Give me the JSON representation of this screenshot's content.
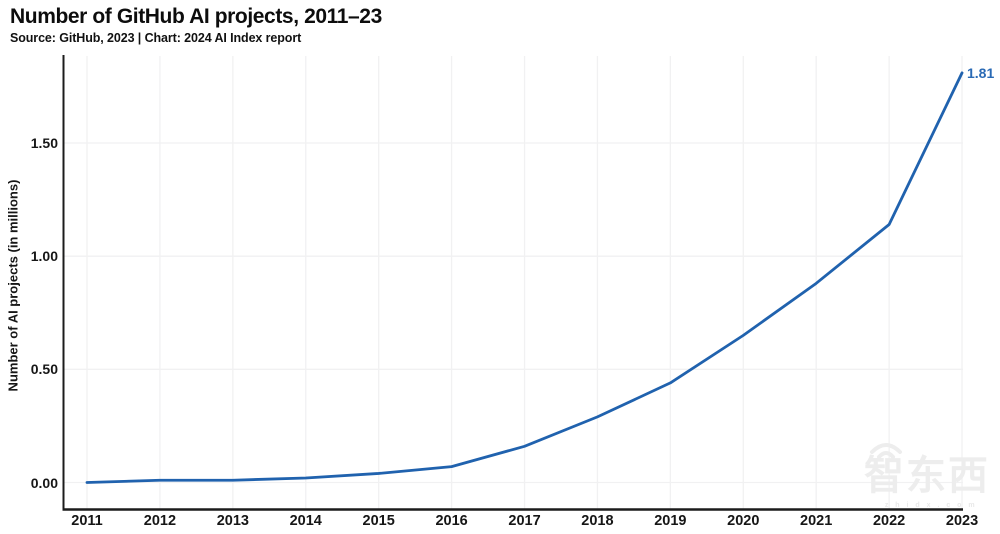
{
  "header": {
    "title": "Number of GitHub AI projects, 2011–23",
    "subtitle": "Source: GitHub, 2023 | Chart: 2024 AI Index report"
  },
  "colors": {
    "line": "#2062ae",
    "end_label": "#2a6ab5",
    "axis": "#1c1c1c",
    "grid": "#f1f1f2",
    "text": "#161616",
    "watermark": "#ededed"
  },
  "chart_data": {
    "type": "line",
    "title": "Number of GitHub AI projects, 2011–23",
    "xlabel": "",
    "ylabel": "Number of AI projects (in millions)",
    "categories": [
      "2011",
      "2012",
      "2013",
      "2014",
      "2015",
      "2016",
      "2017",
      "2018",
      "2019",
      "2020",
      "2021",
      "2022",
      "2023"
    ],
    "series": [
      {
        "name": "Number of AI projects (in millions)",
        "values": [
          0.0,
          0.01,
          0.01,
          0.02,
          0.04,
          0.07,
          0.16,
          0.29,
          0.44,
          0.65,
          0.88,
          1.14,
          1.81
        ]
      }
    ],
    "y_ticks": {
      "labels": [
        "0.00",
        "0.50",
        "1.00",
        "1.50"
      ],
      "values": [
        0,
        0.5,
        1.0,
        1.5
      ]
    },
    "ylim": [
      0,
      1.9
    ],
    "grid": true,
    "legend_position": "none",
    "end_label": "1.81"
  },
  "watermark": {
    "text": "智东西",
    "subtext": "z h i d x . c o m"
  }
}
